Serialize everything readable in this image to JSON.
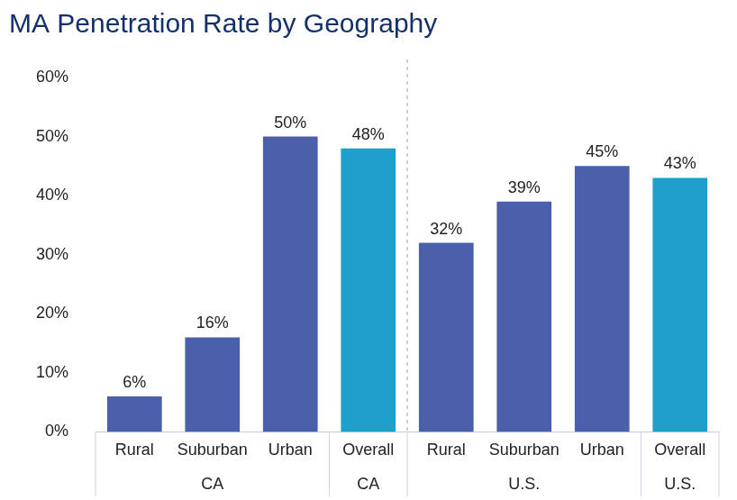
{
  "chart_data": {
    "type": "bar",
    "title": "MA Penetration Rate by Geography",
    "groups": [
      {
        "name": "CA",
        "categories": [
          "Rural",
          "Suburban",
          "Urban"
        ]
      },
      {
        "name": "CA",
        "categories": [
          "Overall"
        ]
      },
      {
        "name": "U.S.",
        "categories": [
          "Rural",
          "Suburban",
          "Urban"
        ]
      },
      {
        "name": "U.S.",
        "categories": [
          "Overall"
        ]
      }
    ],
    "values": [
      6,
      16,
      50,
      48,
      32,
      39,
      45,
      43
    ],
    "value_labels": [
      "6%",
      "16%",
      "50%",
      "48%",
      "32%",
      "39%",
      "45%",
      "43%"
    ],
    "colors": [
      "#4a60aa",
      "#4a60aa",
      "#4a60aa",
      "#1f9fcc",
      "#4a60aa",
      "#4a60aa",
      "#4a60aa",
      "#1f9fcc"
    ],
    "ylim": [
      0,
      60
    ],
    "yticks": [
      {
        "value": 0,
        "label": "0%"
      },
      {
        "value": 10,
        "label": "10%"
      },
      {
        "value": 20,
        "label": "20%"
      },
      {
        "value": 30,
        "label": "30%"
      },
      {
        "value": 40,
        "label": "40%"
      },
      {
        "value": 50,
        "label": "50%"
      },
      {
        "value": 60,
        "label": "60%"
      }
    ],
    "grid": false,
    "data_labels": true
  }
}
